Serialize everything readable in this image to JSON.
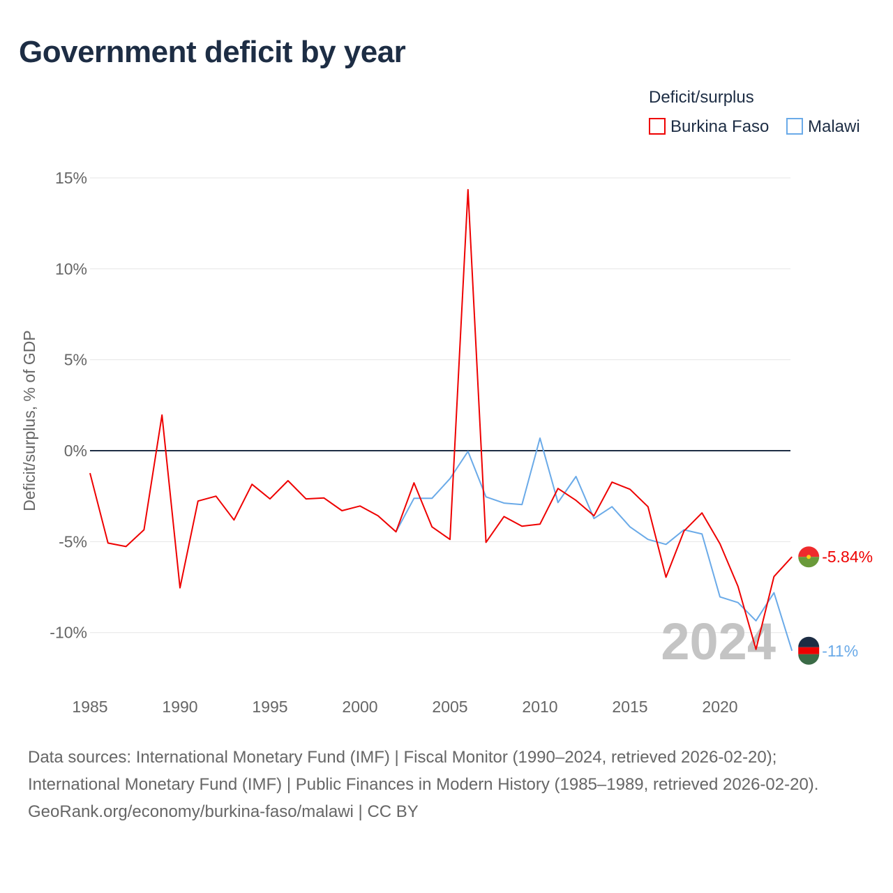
{
  "title": "Government deficit by year",
  "legend": {
    "title": "Deficit/surplus",
    "items": [
      {
        "name": "Burkina Faso",
        "color": "#ee0000"
      },
      {
        "name": "Malawi",
        "color": "#6aaae8"
      }
    ]
  },
  "year_watermark": "2024",
  "footer": {
    "sources": "Data sources: International Monetary Fund (IMF) | Fiscal Monitor (1990–2024, retrieved 2026-02-20); International Monetary Fund (IMF) | Public Finances in Modern History (1985–1989, retrieved 2026-02-20).",
    "credit": "GeoRank.org/economy/burkina-faso/malawi | CC BY"
  },
  "chart_data": {
    "type": "line",
    "title": "Government deficit by year",
    "xlabel": "",
    "ylabel": "Deficit/surplus, % of GDP",
    "xlim": [
      1985,
      2024
    ],
    "ylim": [
      -11.5,
      15
    ],
    "xticks": [
      1985,
      1990,
      1995,
      2000,
      2005,
      2010,
      2015,
      2020
    ],
    "xtick_labels": [
      "1985",
      "1990",
      "1995",
      "2000",
      "2005",
      "2010",
      "2015",
      "2020"
    ],
    "yticks": [
      15,
      10,
      5,
      0,
      -5,
      -10
    ],
    "ytick_labels": [
      "15%",
      "10%",
      "5%",
      "0%",
      "-5%",
      "-10%"
    ],
    "grid": true,
    "legend_position": "top-right",
    "series": [
      {
        "name": "Burkina Faso",
        "color": "#ee0000",
        "end_label": "-5.84%",
        "x": [
          1985,
          1986,
          1987,
          1988,
          1989,
          1990,
          1991,
          1992,
          1993,
          1994,
          1995,
          1996,
          1997,
          1998,
          1999,
          2000,
          2001,
          2002,
          2003,
          2004,
          2005,
          2006,
          2007,
          2008,
          2009,
          2010,
          2011,
          2012,
          2013,
          2014,
          2015,
          2016,
          2017,
          2018,
          2019,
          2020,
          2021,
          2022,
          2023,
          2024
        ],
        "y": [
          -1.23,
          -5.08,
          -5.27,
          -4.35,
          1.96,
          -7.54,
          -2.77,
          -2.5,
          -3.81,
          -1.85,
          -2.65,
          -1.65,
          -2.65,
          -2.6,
          -3.3,
          -3.04,
          -3.58,
          -4.46,
          -1.77,
          -4.19,
          -4.88,
          14.35,
          -5.04,
          -3.62,
          -4.15,
          -4.04,
          -2.08,
          -2.73,
          -3.58,
          -1.73,
          -2.12,
          -3.08,
          -6.96,
          -4.42,
          -3.42,
          -5.12,
          -7.46,
          -10.92,
          -6.92,
          -5.84
        ]
      },
      {
        "name": "Malawi",
        "color": "#6aaae8",
        "end_label": "-11%",
        "x": [
          2002,
          2003,
          2004,
          2005,
          2006,
          2007,
          2008,
          2009,
          2010,
          2011,
          2012,
          2013,
          2014,
          2015,
          2016,
          2017,
          2018,
          2019,
          2020,
          2021,
          2022,
          2023,
          2024
        ],
        "y": [
          -4.46,
          -2.62,
          -2.62,
          -1.54,
          -0.04,
          -2.54,
          -2.88,
          -2.96,
          0.69,
          -2.85,
          -1.42,
          -3.73,
          -3.08,
          -4.19,
          -4.88,
          -5.15,
          -4.35,
          -4.58,
          -8.04,
          -8.35,
          -9.35,
          -7.81,
          -11.0
        ]
      }
    ]
  }
}
